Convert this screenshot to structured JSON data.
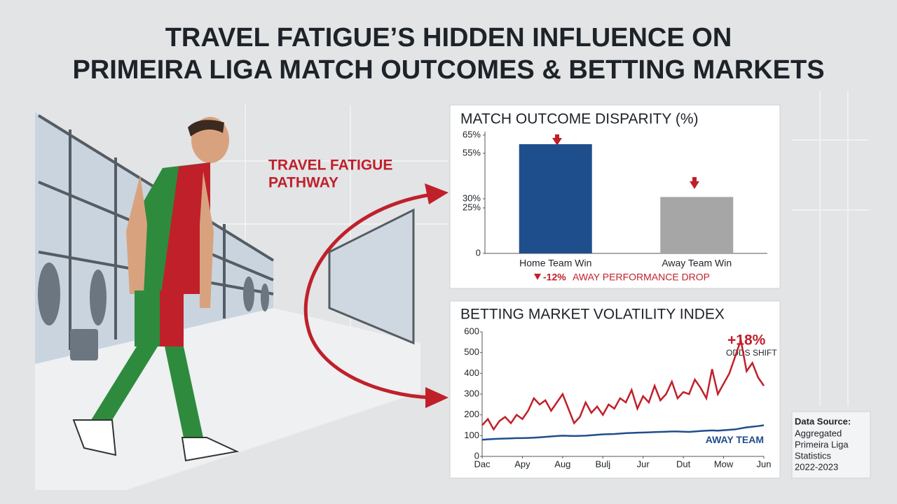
{
  "title_line1": "TRAVEL FATIGUE’S HIDDEN INFLUENCE ON",
  "title_line2": "PRIMEIRA LIGA MATCH OUTCOMES & BETTING MARKETS",
  "pathway_line1": "TRAVEL FATIGUE",
  "pathway_line2": "PATHWAY",
  "data_source": {
    "heading": "Data Source:",
    "lines": [
      "Aggregated",
      "Primeira Liga",
      "Statistics",
      "2022-2023"
    ]
  },
  "chart_data": [
    {
      "type": "bar",
      "title": "MATCH OUTCOME DISPARITY (%)",
      "categories": [
        "Home Team Win",
        "Away Team Win"
      ],
      "values": [
        60,
        31
      ],
      "colors": [
        "#1f4e8c",
        "#a6a6a6"
      ],
      "ylim": [
        0,
        65
      ],
      "yticks": [
        0,
        {
          "value": 25,
          "label": "25%"
        },
        {
          "value": 30,
          "label": "30%"
        },
        {
          "value": 55,
          "label": "55%"
        },
        {
          "value": 65,
          "label": "65%"
        }
      ],
      "annotation_value": "-12%",
      "annotation_text": "AWAY PERFORMANCE DROP"
    },
    {
      "type": "line",
      "title": "BETTING MARKET VOLATILITY INDEX",
      "x": [
        0,
        1,
        2,
        3,
        4,
        5,
        6,
        7,
        8,
        9,
        10,
        11,
        12,
        13,
        14,
        15,
        16,
        17,
        18,
        19,
        20,
        21,
        22,
        23,
        24,
        25,
        26,
        27,
        28,
        29,
        30,
        31,
        32,
        33,
        34,
        35,
        36,
        37,
        38,
        39,
        40,
        41,
        42,
        43,
        44,
        45,
        46,
        47,
        48,
        49
      ],
      "xlim": [
        0,
        49
      ],
      "xticks": [
        {
          "value": 0,
          "label": "Dac"
        },
        {
          "value": 7,
          "label": "Apy"
        },
        {
          "value": 14,
          "label": "Aug"
        },
        {
          "value": 21,
          "label": "Bulj"
        },
        {
          "value": 28,
          "label": "Jur"
        },
        {
          "value": 35,
          "label": "Dut"
        },
        {
          "value": 42,
          "label": "Mow"
        },
        {
          "value": 49,
          "label": "Jun"
        }
      ],
      "ylim": [
        0,
        600
      ],
      "yticks": [
        0,
        100,
        200,
        300,
        400,
        500,
        600
      ],
      "series": [
        {
          "color": "#c0202a",
          "values": [
            150,
            180,
            130,
            170,
            190,
            160,
            200,
            180,
            220,
            280,
            250,
            270,
            220,
            260,
            300,
            230,
            160,
            190,
            260,
            210,
            240,
            200,
            250,
            230,
            280,
            260,
            320,
            230,
            290,
            260,
            340,
            270,
            300,
            360,
            280,
            310,
            300,
            370,
            330,
            280,
            420,
            300,
            350,
            400,
            480,
            560,
            410,
            450,
            380,
            340
          ]
        },
        {
          "name": "AWAY TEAM",
          "color": "#1f4e8c",
          "values": [
            80,
            82,
            84,
            85,
            86,
            87,
            88,
            88,
            89,
            90,
            92,
            94,
            96,
            98,
            100,
            99,
            98,
            99,
            100,
            102,
            104,
            106,
            107,
            108,
            110,
            112,
            113,
            114,
            115,
            116,
            117,
            118,
            119,
            120,
            120,
            119,
            118,
            120,
            122,
            124,
            125,
            124,
            126,
            128,
            130,
            135,
            140,
            143,
            146,
            150
          ]
        }
      ],
      "annotation_value": "+18%",
      "annotation_text": "ODDS SHIFT"
    }
  ]
}
